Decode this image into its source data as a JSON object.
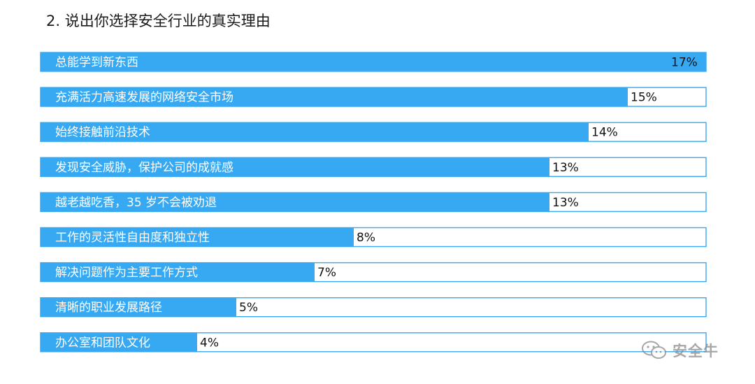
{
  "title": "2. 说出你选择安全行业的真实理由",
  "watermark": {
    "text": "安全牛",
    "icon": "wechat-icon"
  },
  "colors": {
    "bar": "#36a9f2",
    "bar_outline": "#36a9f2",
    "label_text": "#ffffff",
    "value_text": "#111111"
  },
  "chart_data": {
    "type": "bar",
    "orientation": "horizontal",
    "title": "2. 说出你选择安全行业的真实理由",
    "categories": [
      "总能学到新东西",
      "充满活力高速发展的网络安全市场",
      "始终接触前沿技术",
      "发现安全威胁，保护公司的成就感",
      "越老越吃香，35 岁不会被劝退",
      "工作的灵活性自由度和独立性",
      "解决问题作为主要工作方式",
      "清晰的职业发展路径",
      "办公室和团队文化"
    ],
    "values": [
      17,
      15,
      14,
      13,
      13,
      8,
      7,
      5,
      4
    ],
    "value_labels": [
      "17%",
      "15%",
      "14%",
      "13%",
      "13%",
      "8%",
      "7%",
      "5%",
      "4%"
    ],
    "unit": "%",
    "xlim": [
      0,
      17
    ],
    "grid": false,
    "legend": "none"
  }
}
